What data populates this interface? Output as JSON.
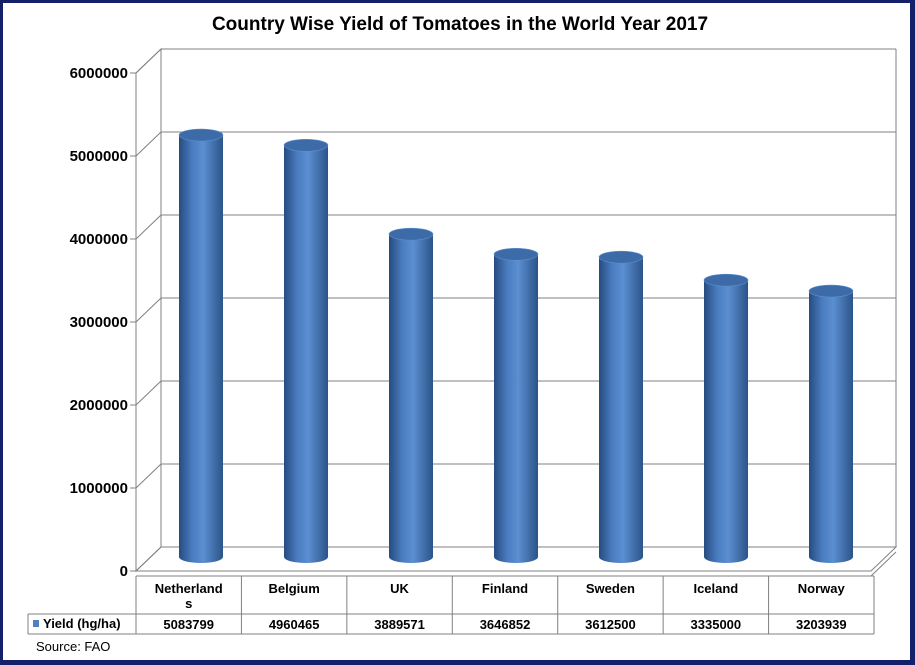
{
  "chart_data": {
    "type": "bar",
    "title": "Country Wise Yield of Tomatoes in the World Year 2017",
    "categories": [
      [
        "Netherland",
        "s"
      ],
      [
        "Belgium"
      ],
      [
        "UK"
      ],
      [
        "Finland"
      ],
      [
        "Sweden"
      ],
      [
        "Iceland"
      ],
      [
        "Norway"
      ]
    ],
    "series": [
      {
        "name": "Yield (hg/ha)",
        "values": [
          5083799,
          4960465,
          3889571,
          3646852,
          3612500,
          3335000,
          3203939
        ],
        "value_labels": [
          "5083799",
          "4960465",
          "3889571",
          "3646852",
          "3612500",
          "3335000",
          "3203939"
        ]
      }
    ],
    "ylim": [
      0,
      6000000
    ],
    "yticks": [
      "0",
      "1000000",
      "2000000",
      "3000000",
      "4000000",
      "5000000",
      "6000000"
    ],
    "grid": true,
    "legend": "data-table",
    "source": "Source: FAO",
    "colors": {
      "bar": "#4f81bd",
      "bar_dark": "#2c5485",
      "bar_top": "#3c6ba7",
      "grid": "#808080"
    }
  }
}
